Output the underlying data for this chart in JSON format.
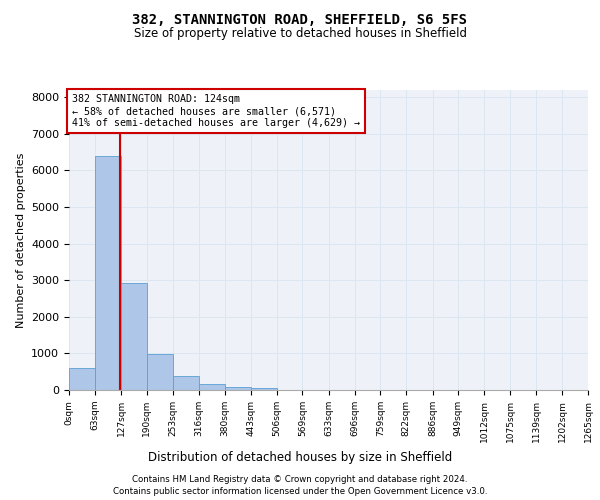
{
  "title": "382, STANNINGTON ROAD, SHEFFIELD, S6 5FS",
  "subtitle": "Size of property relative to detached houses in Sheffield",
  "xlabel": "Distribution of detached houses by size in Sheffield",
  "ylabel": "Number of detached properties",
  "footer_line1": "Contains HM Land Registry data © Crown copyright and database right 2024.",
  "footer_line2": "Contains public sector information licensed under the Open Government Licence v3.0.",
  "annotation_line1": "382 STANNINGTON ROAD: 124sqm",
  "annotation_line2": "← 58% of detached houses are smaller (6,571)",
  "annotation_line3": "41% of semi-detached houses are larger (4,629) →",
  "property_size": 124,
  "bin_edges": [
    0,
    63,
    127,
    190,
    253,
    316,
    380,
    443,
    506,
    569,
    633,
    696,
    759,
    822,
    886,
    949,
    1012,
    1075,
    1139,
    1202,
    1265
  ],
  "bar_heights": [
    600,
    6400,
    2920,
    990,
    370,
    155,
    90,
    60,
    0,
    0,
    0,
    0,
    0,
    0,
    0,
    0,
    0,
    0,
    0,
    0
  ],
  "bar_color": "#aec6e8",
  "bar_edge_color": "#5a9fd4",
  "grid_color": "#dce6f0",
  "red_line_color": "#cc0000",
  "annotation_box_color": "#cc0000",
  "background_color": "#eef2f8",
  "ylim": [
    0,
    8200
  ],
  "yticks": [
    0,
    1000,
    2000,
    3000,
    4000,
    5000,
    6000,
    7000,
    8000
  ],
  "tick_labels": [
    "0sqm",
    "63sqm",
    "127sqm",
    "190sqm",
    "253sqm",
    "316sqm",
    "380sqm",
    "443sqm",
    "506sqm",
    "569sqm",
    "633sqm",
    "696sqm",
    "759sqm",
    "822sqm",
    "886sqm",
    "949sqm",
    "1012sqm",
    "1075sqm",
    "1139sqm",
    "1202sqm",
    "1265sqm"
  ]
}
